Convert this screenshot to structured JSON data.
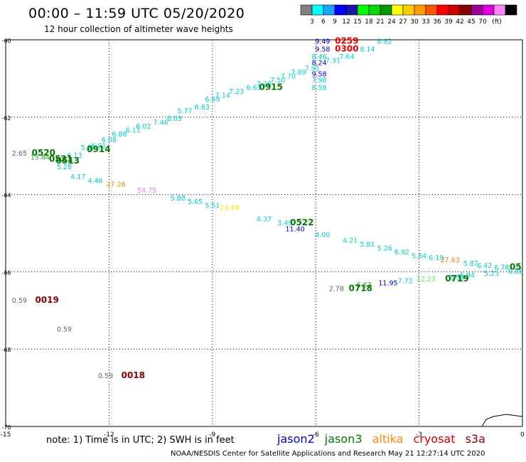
{
  "header": {
    "title": "00:00 – 11:59 UTC 05/20/2020",
    "subtitle": "12 hour collection of altimeter wave heights"
  },
  "colorbar": {
    "colors": [
      "#808080",
      "#00ffff",
      "#1aa6ff",
      "#0000ff",
      "#1818a8",
      "#00ff00",
      "#0ad70a",
      "#009900",
      "#ffff00",
      "#ffcc00",
      "#ff9900",
      "#ff5500",
      "#ff0000",
      "#cc0000",
      "#880000",
      "#990099",
      "#dd00dd",
      "#ff88ff",
      "#000000"
    ],
    "labels": [
      "3",
      "6",
      "9",
      "12",
      "15",
      "18",
      "21",
      "24",
      "27",
      "30",
      "33",
      "36",
      "39",
      "42",
      "45",
      "70",
      "(ft)"
    ]
  },
  "axes": {
    "x_ticks": [
      "-15",
      "-12",
      "-9",
      "-6",
      "-3",
      "0"
    ],
    "y_ticks": [
      "-60",
      "-62",
      "-64",
      "-66",
      "-68",
      "-70"
    ]
  },
  "series_colors": {
    "jason2": "#0000cc",
    "jason3": "#007700",
    "altika": "#ff8800",
    "cryosat": "#cc0000",
    "s3a": "#880000"
  },
  "chart_data": {
    "type": "scatter",
    "x_label": "",
    "y_label": "",
    "xlim": [
      -15,
      0
    ],
    "ylim": [
      -70,
      -60
    ],
    "points": [
      {
        "x": -5.8,
        "y": -60.1,
        "v": "9.49",
        "c": "#0000cc"
      },
      {
        "x": -5.8,
        "y": -60.3,
        "v": "9.58",
        "c": "#0000cc"
      },
      {
        "x": -5.1,
        "y": -60.1,
        "v": "0259",
        "c": "#ee0000",
        "big": true
      },
      {
        "x": -5.1,
        "y": -60.3,
        "v": "0300",
        "c": "#ee0000",
        "big": true
      },
      {
        "x": -4.0,
        "y": -60.1,
        "v": "8.82",
        "c": "#00cccc"
      },
      {
        "x": -4.5,
        "y": -60.3,
        "v": "8.14",
        "c": "#00cccc"
      },
      {
        "x": -5.1,
        "y": -60.5,
        "v": "7.64",
        "c": "#00cccc"
      },
      {
        "x": -5.5,
        "y": -60.6,
        "v": "7.31",
        "c": "#00cccc"
      },
      {
        "x": -5.9,
        "y": -60.5,
        "v": "8.46",
        "c": "#00cccc"
      },
      {
        "x": -5.9,
        "y": -60.65,
        "v": "8.24",
        "c": "#0000cc"
      },
      {
        "x": -5.9,
        "y": -60.95,
        "v": "9.58",
        "c": "#0000cc"
      },
      {
        "x": -6.1,
        "y": -60.8,
        "v": "7.91",
        "c": "#00cccc"
      },
      {
        "x": -6.5,
        "y": -60.9,
        "v": "7.89",
        "c": "#00cccc"
      },
      {
        "x": -6.8,
        "y": -61.0,
        "v": "7.70",
        "c": "#00cccc"
      },
      {
        "x": -7.1,
        "y": -61.1,
        "v": "7.50",
        "c": "#00cccc"
      },
      {
        "x": -5.9,
        "y": -61.1,
        "v": "7.98",
        "c": "#00cccc"
      },
      {
        "x": -5.9,
        "y": -61.3,
        "v": "8.58",
        "c": "#00cccc"
      },
      {
        "x": -7.5,
        "y": -61.2,
        "v": "7.28",
        "c": "#00cccc"
      },
      {
        "x": -7.8,
        "y": -61.3,
        "v": "6.61",
        "c": "#00cccc"
      },
      {
        "x": -7.3,
        "y": -61.3,
        "v": "0915",
        "c": "#007700",
        "big": true
      },
      {
        "x": -8.3,
        "y": -61.4,
        "v": "7.23",
        "c": "#00cccc"
      },
      {
        "x": -8.7,
        "y": -61.5,
        "v": "7.14",
        "c": "#00cccc"
      },
      {
        "x": -9.0,
        "y": -61.6,
        "v": "6.89",
        "c": "#00cccc"
      },
      {
        "x": -9.3,
        "y": -61.8,
        "v": "6.63",
        "c": "#00cccc"
      },
      {
        "x": -9.8,
        "y": -61.9,
        "v": "5.77",
        "c": "#00cccc"
      },
      {
        "x": -10.1,
        "y": -62.1,
        "v": "6.03",
        "c": "#00cccc"
      },
      {
        "x": -10.5,
        "y": -62.2,
        "v": "7.46",
        "c": "#00cccc"
      },
      {
        "x": -11.0,
        "y": -62.3,
        "v": "6.02",
        "c": "#00cccc"
      },
      {
        "x": -11.3,
        "y": -62.4,
        "v": "6.11",
        "c": "#00cccc"
      },
      {
        "x": -11.7,
        "y": -62.5,
        "v": "6.88",
        "c": "#00cccc"
      },
      {
        "x": -12.0,
        "y": -62.65,
        "v": "6.08",
        "c": "#00cccc"
      },
      {
        "x": -12.3,
        "y": -62.8,
        "v": "6.81",
        "c": "#00cccc"
      },
      {
        "x": -12.6,
        "y": -62.85,
        "v": "5.99",
        "c": "#00cccc"
      },
      {
        "x": -12.3,
        "y": -62.9,
        "v": "0914",
        "c": "#007700",
        "big": true
      },
      {
        "x": -14.6,
        "y": -63.0,
        "v": "2.65",
        "c": "#666666"
      },
      {
        "x": -13.9,
        "y": -63.0,
        "v": "0520",
        "c": "#007700",
        "big": true
      },
      {
        "x": -14.0,
        "y": -63.1,
        "v": "15.84",
        "c": "#22aa22"
      },
      {
        "x": -13.0,
        "y": -63.05,
        "v": "6.13",
        "c": "#00cccc"
      },
      {
        "x": -13.4,
        "y": -63.15,
        "v": "0521",
        "c": "#007700",
        "big": true
      },
      {
        "x": -13.2,
        "y": -63.2,
        "v": "0513",
        "c": "#007700",
        "big": true
      },
      {
        "x": -13.3,
        "y": -63.35,
        "v": "5.28",
        "c": "#00cccc"
      },
      {
        "x": -12.9,
        "y": -63.6,
        "v": "4.17",
        "c": "#00cccc"
      },
      {
        "x": -12.4,
        "y": -63.7,
        "v": "4.46",
        "c": "#00cccc"
      },
      {
        "x": -11.8,
        "y": -63.8,
        "v": "27.26",
        "c": "#ff8800"
      },
      {
        "x": -10.9,
        "y": -63.95,
        "v": "54.75",
        "c": "#ee77ee"
      },
      {
        "x": -10.0,
        "y": -64.15,
        "v": "5.88",
        "c": "#00cccc"
      },
      {
        "x": -9.5,
        "y": -64.25,
        "v": "5.65",
        "c": "#00cccc"
      },
      {
        "x": -9.0,
        "y": -64.35,
        "v": "5.51",
        "c": "#00cccc"
      },
      {
        "x": -8.5,
        "y": -64.4,
        "v": "23.49",
        "c": "#eeee00"
      },
      {
        "x": -7.5,
        "y": -64.7,
        "v": "4.37",
        "c": "#00cccc"
      },
      {
        "x": -6.9,
        "y": -64.8,
        "v": "3.49",
        "c": "#00cccc"
      },
      {
        "x": -6.4,
        "y": -64.8,
        "v": "0522",
        "c": "#007700",
        "big": true
      },
      {
        "x": -6.6,
        "y": -64.95,
        "v": "11.40",
        "c": "#0000cc"
      },
      {
        "x": -5.8,
        "y": -65.1,
        "v": "4.00",
        "c": "#00cccc"
      },
      {
        "x": -5.0,
        "y": -65.25,
        "v": "4.21",
        "c": "#00cccc"
      },
      {
        "x": -4.5,
        "y": -65.35,
        "v": "5.81",
        "c": "#00cccc"
      },
      {
        "x": -4.0,
        "y": -65.45,
        "v": "5.26",
        "c": "#00cccc"
      },
      {
        "x": -3.5,
        "y": -65.55,
        "v": "6.92",
        "c": "#00cccc"
      },
      {
        "x": -3.0,
        "y": -65.65,
        "v": "5.84",
        "c": "#00cccc"
      },
      {
        "x": -2.5,
        "y": -65.7,
        "v": "6.19",
        "c": "#00cccc"
      },
      {
        "x": -2.1,
        "y": -65.75,
        "v": "27.63",
        "c": "#ff8800"
      },
      {
        "x": -1.5,
        "y": -65.85,
        "v": "5.87",
        "c": "#00cccc"
      },
      {
        "x": -1.1,
        "y": -65.9,
        "v": "6.42",
        "c": "#00cccc"
      },
      {
        "x": -0.6,
        "y": -65.95,
        "v": "6.78",
        "c": "#00cccc"
      },
      {
        "x": -0.2,
        "y": -66.05,
        "v": "6.88",
        "c": "#00cccc"
      },
      {
        "x": -0.2,
        "y": -65.95,
        "v": "05",
        "c": "#007700",
        "big": true
      },
      {
        "x": -0.9,
        "y": -66.1,
        "v": "5.23",
        "c": "#00cccc"
      },
      {
        "x": -1.6,
        "y": -66.15,
        "v": "5.84",
        "c": "#00cccc"
      },
      {
        "x": -1.9,
        "y": -66.2,
        "v": "5.93",
        "c": "#00cccc"
      },
      {
        "x": -1.9,
        "y": -66.25,
        "v": "0719",
        "c": "#007700",
        "big": true
      },
      {
        "x": -2.8,
        "y": -66.25,
        "v": "12.23",
        "c": "#66dd66"
      },
      {
        "x": -3.4,
        "y": -66.3,
        "v": "7.72",
        "c": "#00cccc"
      },
      {
        "x": -3.9,
        "y": -66.35,
        "v": "11.95",
        "c": "#0000cc"
      },
      {
        "x": -4.6,
        "y": -66.4,
        "v": "6.67",
        "c": "#22aa22"
      },
      {
        "x": -4.7,
        "y": -66.5,
        "v": "0718",
        "c": "#007700",
        "big": true
      },
      {
        "x": -5.4,
        "y": -66.5,
        "v": "2.78",
        "c": "#666666"
      },
      {
        "x": -14.6,
        "y": -66.8,
        "v": "0.59",
        "c": "#666666"
      },
      {
        "x": -13.8,
        "y": -66.8,
        "v": "0019",
        "c": "#880000",
        "big": true
      },
      {
        "x": -13.3,
        "y": -67.55,
        "v": "0.59",
        "c": "#666666"
      },
      {
        "x": -12.1,
        "y": -68.75,
        "v": "0.59",
        "c": "#666666"
      },
      {
        "x": -11.3,
        "y": -68.75,
        "v": "0018",
        "c": "#880000",
        "big": true
      }
    ]
  },
  "footer": {
    "note": "note: 1) Time is in UTC; 2) SWH is in feet",
    "satellites": [
      "jason2",
      "jason3",
      "altika",
      "cryosat",
      "s3a"
    ],
    "credit": "NOAA/NESDIS Center for Satellite Applications and Research    May 21 12:27:14 UTC 2020"
  }
}
